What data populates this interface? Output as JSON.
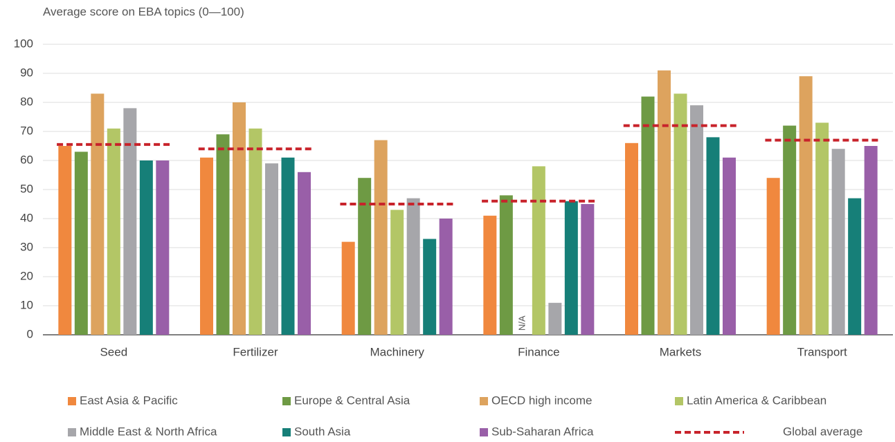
{
  "chart_data": {
    "type": "bar",
    "title": "Average score on EBA topics (0—100)",
    "categories": [
      "Seed",
      "Fertilizer",
      "Machinery",
      "Finance",
      "Markets",
      "Transport"
    ],
    "series": [
      {
        "name": "East Asia & Pacific",
        "color": "#f0883e",
        "values": [
          65,
          61,
          32,
          41,
          66,
          54
        ]
      },
      {
        "name": "Europe & Central Asia",
        "color": "#6e9a44",
        "values": [
          63,
          69,
          54,
          48,
          82,
          72
        ]
      },
      {
        "name": "OECD high income",
        "color": "#dda35e",
        "values": [
          83,
          80,
          67,
          null,
          91,
          89
        ]
      },
      {
        "name": "Latin America & Caribbean",
        "color": "#b3c666",
        "values": [
          71,
          71,
          43,
          58,
          83,
          73
        ]
      },
      {
        "name": "Middle East & North Africa",
        "color": "#a6a6aa",
        "values": [
          78,
          59,
          47,
          11,
          79,
          64
        ]
      },
      {
        "name": "South Asia",
        "color": "#167f78",
        "values": [
          60,
          61,
          33,
          46,
          68,
          47
        ]
      },
      {
        "name": "Sub-Saharan Africa",
        "color": "#995fa8",
        "values": [
          60,
          56,
          40,
          45,
          61,
          65
        ]
      },
      {
        "name": "Global average",
        "color": "#c8232b",
        "style": "dashed",
        "values": [
          65.5,
          64,
          45,
          46,
          72,
          67
        ]
      }
    ],
    "missing_label": "N/A",
    "ylim": [
      0,
      100
    ],
    "yticks": [
      0,
      10,
      20,
      30,
      40,
      50,
      60,
      70,
      80,
      90,
      100
    ],
    "grid": true
  }
}
